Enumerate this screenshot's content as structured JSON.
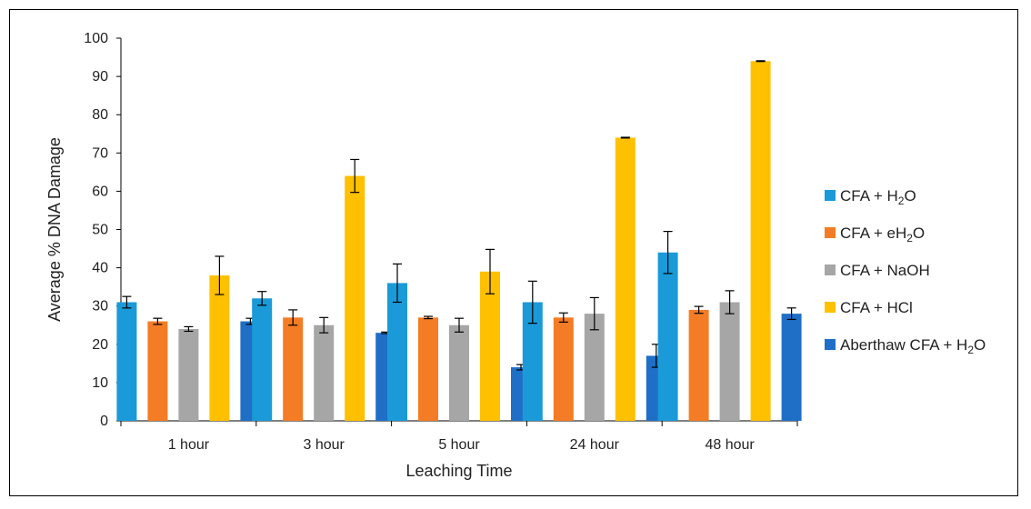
{
  "chart_data": {
    "type": "bar",
    "title": "",
    "xlabel": "Leaching Time",
    "ylabel": "Average % DNA Damage",
    "ylim": [
      0,
      100
    ],
    "yticks": [
      0,
      10,
      20,
      30,
      40,
      50,
      60,
      70,
      80,
      90,
      100
    ],
    "grid": false,
    "legend_position": "right",
    "categories": [
      "1 hour",
      "3 hour",
      "5 hour",
      "24 hour",
      "48 hour"
    ],
    "series": [
      {
        "name": "CFA + H₂O",
        "color": "#1a9ad8",
        "values": [
          31,
          32,
          36,
          31,
          44
        ],
        "errors": [
          1.5,
          1.8,
          5,
          5.5,
          5.5
        ]
      },
      {
        "name": "CFA + eH₂O",
        "color": "#f47c24",
        "values": [
          26,
          27,
          27,
          27,
          29
        ],
        "errors": [
          0.8,
          2,
          0.3,
          1.2,
          0.9
        ]
      },
      {
        "name": "CFA + NaOH",
        "color": "#a6a6a6",
        "values": [
          24,
          25,
          25,
          28,
          31
        ],
        "errors": [
          0.6,
          2,
          1.8,
          4.2,
          3
        ]
      },
      {
        "name": "CFA + HCl",
        "color": "#ffc000",
        "values": [
          38,
          64,
          39,
          74,
          94
        ],
        "errors": [
          5,
          4.3,
          5.8,
          0.1,
          0.1
        ]
      },
      {
        "name": "Aberthaw CFA + H₂O",
        "color": "#1f6fc7",
        "values": [
          26,
          23,
          14,
          17,
          28
        ],
        "errors": [
          0.8,
          0.2,
          0.7,
          3,
          1.5
        ]
      }
    ]
  }
}
